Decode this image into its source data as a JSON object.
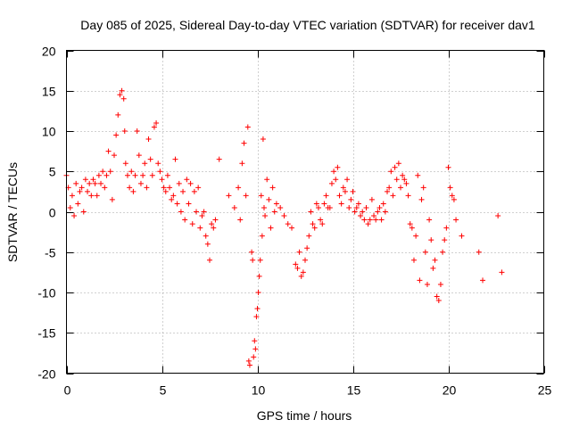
{
  "chart_data": {
    "type": "scatter",
    "title": "Day 085 of 2025, Sidereal Day-to-day VTEC variation (SDTVAR) for receiver dav1",
    "xlabel": "GPS time / hours",
    "ylabel": "SDTVAR / TECUs",
    "xlim": [
      0,
      25
    ],
    "ylim": [
      -20,
      20
    ],
    "xticks": [
      0,
      5,
      10,
      15,
      20,
      25
    ],
    "yticks": [
      20,
      15,
      10,
      5,
      0,
      -5,
      -10,
      -15,
      -20
    ],
    "grid": true,
    "marker": "+",
    "color": "#ff0000",
    "series": [
      {
        "name": "SDTVAR",
        "x": [
          0.0,
          0.1,
          0.2,
          0.3,
          0.4,
          0.5,
          0.6,
          0.7,
          0.8,
          0.9,
          1.0,
          1.1,
          1.2,
          1.3,
          1.4,
          1.5,
          1.6,
          1.7,
          1.8,
          1.9,
          2.0,
          2.1,
          2.2,
          2.3,
          2.4,
          2.5,
          2.6,
          2.7,
          2.8,
          2.9,
          3.0,
          3.05,
          3.1,
          3.2,
          3.3,
          3.4,
          3.5,
          3.6,
          3.7,
          3.8,
          3.9,
          4.0,
          4.1,
          4.2,
          4.3,
          4.4,
          4.5,
          4.6,
          4.7,
          4.8,
          4.9,
          5.0,
          5.1,
          5.2,
          5.3,
          5.4,
          5.5,
          5.6,
          5.7,
          5.8,
          5.9,
          6.0,
          6.1,
          6.2,
          6.3,
          6.4,
          6.5,
          6.6,
          6.7,
          6.8,
          6.9,
          7.0,
          7.1,
          7.2,
          7.3,
          7.4,
          7.5,
          7.6,
          7.7,
          7.8,
          8.0,
          8.5,
          8.8,
          9.0,
          9.1,
          9.2,
          9.3,
          9.4,
          9.5,
          9.55,
          9.6,
          9.7,
          9.75,
          9.8,
          9.85,
          9.9,
          9.95,
          10.0,
          10.05,
          10.1,
          10.15,
          10.2,
          10.25,
          10.3,
          10.35,
          10.4,
          10.5,
          10.6,
          10.7,
          10.8,
          10.9,
          11.0,
          11.2,
          11.4,
          11.6,
          11.8,
          12.0,
          12.1,
          12.2,
          12.3,
          12.4,
          12.5,
          12.6,
          12.7,
          12.8,
          12.9,
          13.0,
          13.1,
          13.2,
          13.3,
          13.4,
          13.5,
          13.6,
          13.7,
          13.8,
          13.9,
          14.0,
          14.1,
          14.2,
          14.3,
          14.4,
          14.5,
          14.6,
          14.7,
          14.8,
          14.9,
          15.0,
          15.1,
          15.2,
          15.3,
          15.4,
          15.5,
          15.6,
          15.7,
          15.8,
          15.9,
          16.0,
          16.1,
          16.2,
          16.3,
          16.4,
          16.5,
          16.6,
          16.7,
          16.8,
          16.9,
          17.0,
          17.1,
          17.2,
          17.3,
          17.4,
          17.5,
          17.6,
          17.7,
          17.8,
          17.9,
          18.0,
          18.1,
          18.2,
          18.3,
          18.4,
          18.5,
          18.6,
          18.7,
          18.8,
          18.9,
          19.0,
          19.1,
          19.2,
          19.3,
          19.4,
          19.5,
          19.6,
          19.7,
          19.8,
          19.9,
          20.0,
          20.1,
          20.2,
          20.3,
          20.4,
          20.7,
          21.6,
          21.8,
          22.6,
          22.8
        ],
        "y": [
          4.5,
          3.0,
          0.5,
          2.0,
          -0.5,
          3.5,
          1.0,
          2.5,
          3.0,
          0.0,
          4.0,
          2.5,
          3.5,
          2.0,
          4.0,
          3.5,
          2.0,
          4.5,
          3.5,
          5.0,
          3.0,
          4.5,
          7.5,
          5.0,
          1.5,
          7.0,
          9.5,
          12.0,
          14.5,
          15.0,
          14.0,
          10.0,
          6.0,
          4.5,
          3.0,
          5.0,
          2.5,
          4.5,
          10.0,
          7.0,
          3.5,
          4.5,
          6.0,
          3.0,
          9.0,
          6.5,
          4.5,
          10.5,
          11.0,
          6.0,
          5.0,
          4.0,
          3.0,
          2.5,
          4.5,
          3.0,
          1.5,
          2.0,
          6.5,
          1.0,
          3.5,
          0.0,
          2.5,
          -1.0,
          4.0,
          1.0,
          3.5,
          -1.5,
          2.5,
          0.0,
          3.0,
          -2.0,
          -0.5,
          0.0,
          -3.0,
          -4.0,
          -6.0,
          -1.5,
          -2.0,
          -1.0,
          6.5,
          2.0,
          0.5,
          3.0,
          -1.0,
          6.0,
          8.5,
          2.0,
          10.5,
          -18.5,
          -19.0,
          -5.0,
          -6.0,
          -18.0,
          -16.0,
          -17.0,
          -13.0,
          -12.0,
          -10.0,
          -8.0,
          -6.0,
          2.0,
          -3.0,
          9.0,
          0.5,
          -0.5,
          4.0,
          1.5,
          -2.0,
          3.0,
          0.0,
          1.0,
          0.5,
          -0.5,
          -1.5,
          -2.0,
          -6.5,
          -7.0,
          -5.0,
          -8.0,
          -7.5,
          -6.0,
          -4.5,
          -3.0,
          0.0,
          -1.5,
          -2.0,
          1.0,
          0.5,
          -1.0,
          -1.5,
          1.0,
          2.0,
          0.5,
          0.5,
          3.5,
          5.0,
          4.0,
          5.5,
          2.0,
          1.0,
          3.0,
          2.5,
          4.0,
          0.5,
          1.5,
          2.5,
          0.0,
          0.5,
          1.0,
          -0.5,
          0.0,
          -1.0,
          0.5,
          -1.5,
          -1.0,
          1.5,
          -0.5,
          -1.0,
          0.0,
          0.5,
          -1.0,
          1.0,
          0.0,
          2.5,
          3.0,
          5.0,
          2.0,
          5.5,
          4.0,
          6.0,
          3.0,
          4.5,
          4.0,
          3.5,
          2.0,
          -1.5,
          -2.0,
          -6.0,
          -3.0,
          4.5,
          -8.5,
          1.5,
          3.0,
          -5.0,
          -9.0,
          -1.0,
          -3.5,
          -7.0,
          -6.0,
          -10.5,
          -11.0,
          -9.0,
          -5.0,
          -3.5,
          -2.0,
          5.5,
          3.0,
          2.0,
          1.5,
          -1.0,
          -3.0,
          -5.0,
          -8.5,
          -0.5,
          -7.5
        ]
      }
    ]
  }
}
